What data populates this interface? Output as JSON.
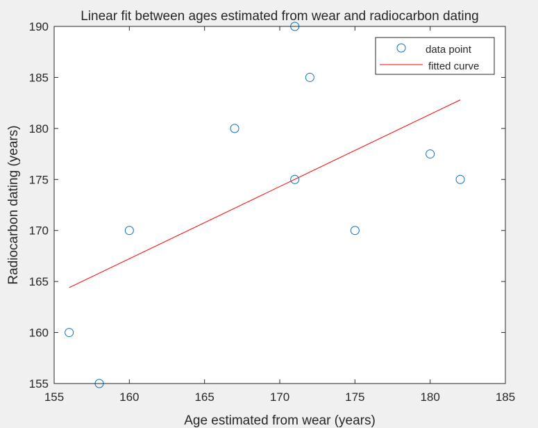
{
  "chart_data": {
    "type": "scatter",
    "title": "Linear fit between ages estimated from wear and radiocarbon dating",
    "xlabel": "Age estimated from wear (years)",
    "ylabel": "Radiocarbon dating (years)",
    "xlim": [
      155,
      185
    ],
    "ylim": [
      155,
      190
    ],
    "xticks": [
      155,
      160,
      165,
      170,
      175,
      180,
      185
    ],
    "yticks": [
      155,
      160,
      165,
      170,
      175,
      180,
      185,
      190
    ],
    "grid": false,
    "legend_position": "top-right",
    "series": [
      {
        "name": "data point",
        "kind": "scatter",
        "marker": "circle-open",
        "color": "#0072BD",
        "points": [
          {
            "x": 156,
            "y": 160
          },
          {
            "x": 158,
            "y": 155
          },
          {
            "x": 160,
            "y": 170
          },
          {
            "x": 167,
            "y": 180
          },
          {
            "x": 171,
            "y": 190
          },
          {
            "x": 171,
            "y": 175
          },
          {
            "x": 172,
            "y": 185
          },
          {
            "x": 175,
            "y": 170
          },
          {
            "x": 180,
            "y": 177.5
          },
          {
            "x": 182,
            "y": 175
          }
        ]
      },
      {
        "name": "fitted curve",
        "kind": "line",
        "color": "#FF0000",
        "points": [
          {
            "x": 156,
            "y": 164.4
          },
          {
            "x": 182,
            "y": 182.8
          }
        ]
      }
    ]
  }
}
